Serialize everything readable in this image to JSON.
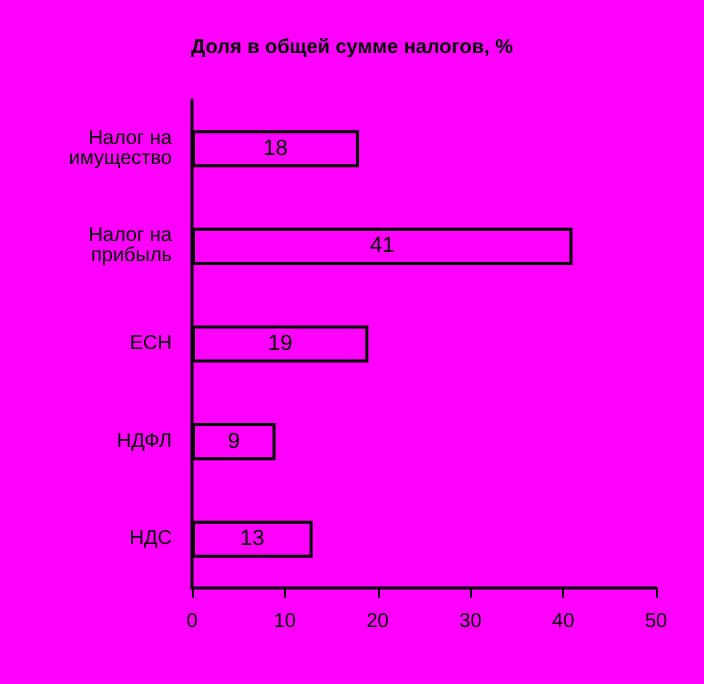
{
  "chart_data": {
    "type": "bar",
    "orientation": "horizontal",
    "title": "Доля в общей сумме налогов, %",
    "categories": [
      "Налог на имущество",
      "Налог на прибыль",
      "ЕСН",
      "НДФЛ",
      "НДС"
    ],
    "values": [
      18,
      41,
      19,
      9,
      13
    ],
    "color": "#ff00ff",
    "xlim": [
      0,
      50
    ],
    "xticks": [
      0,
      10,
      20,
      30,
      40,
      50
    ],
    "grid": false,
    "data_labels": true
  }
}
